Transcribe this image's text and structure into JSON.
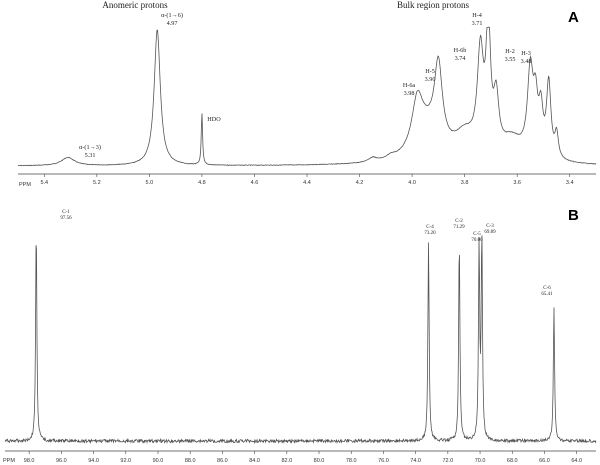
{
  "chart_data": [
    {
      "type": "line",
      "panel": "A",
      "axis_unit": "PPM",
      "xlim": [
        5.5,
        3.3
      ],
      "x_reversed": true,
      "xticks": [
        "5.4",
        "5.2",
        "5.0",
        "4.8",
        "4.6",
        "4.4",
        "4.2",
        "4.0",
        "3.8",
        "3.6",
        "3.4"
      ],
      "region_labels": [
        {
          "text": "Anomeric protons",
          "x": 5.0
        },
        {
          "text": "Bulk region protons",
          "x": 3.82
        }
      ],
      "peaks": [
        {
          "name": "α-(1→3)",
          "shift": "5.31",
          "x": 5.31,
          "rel_height": 0.06
        },
        {
          "name": "α-(1→6)",
          "shift": "4.97",
          "x": 4.97,
          "rel_height": 1.0
        },
        {
          "name": "HDO",
          "shift": "",
          "x": 4.8,
          "rel_height": 0.38
        },
        {
          "name": "H-6a",
          "shift": "3.98",
          "x": 3.98,
          "rel_height": 0.35
        },
        {
          "name": "H-5",
          "shift": "3.90",
          "x": 3.9,
          "rel_height": 0.57
        },
        {
          "name": "H-6b",
          "shift": "3.74",
          "x": 3.74,
          "rel_height": 0.72
        },
        {
          "name": "H-4",
          "shift": "3.71",
          "x": 3.71,
          "rel_height": 0.92
        },
        {
          "name": "H-2",
          "shift": "3.55",
          "x": 3.55,
          "rel_height": 0.62
        },
        {
          "name": "H-3",
          "shift": "3.48",
          "x": 3.48,
          "rel_height": 0.55
        }
      ]
    },
    {
      "type": "line",
      "panel": "B",
      "axis_unit": "PPM",
      "xlim": [
        99.5,
        62.8
      ],
      "x_reversed": true,
      "xticks": [
        "98.0",
        "96.0",
        "94.0",
        "92.0",
        "90.0",
        "88.0",
        "86.0",
        "84.0",
        "82.0",
        "80.0",
        "78.0",
        "76.0",
        "74.0",
        "72.0",
        "70.0",
        "68.0",
        "66.0",
        "64.0"
      ],
      "peaks": [
        {
          "name": "C-1",
          "shift": "97.56",
          "x": 97.56,
          "rel_height": 1.0
        },
        {
          "name": "C-4",
          "shift": "73.20",
          "x": 73.2,
          "rel_height": 0.92
        },
        {
          "name": "C-2",
          "shift": "71.29",
          "x": 71.29,
          "rel_height": 0.94
        },
        {
          "name": "C-5",
          "shift": "70.06",
          "x": 70.06,
          "rel_height": 0.89
        },
        {
          "name": "C-3",
          "shift": "69.89",
          "x": 69.89,
          "rel_height": 0.94
        },
        {
          "name": "C-6",
          "shift": "65.41",
          "x": 65.41,
          "rel_height": 0.62
        }
      ]
    }
  ]
}
